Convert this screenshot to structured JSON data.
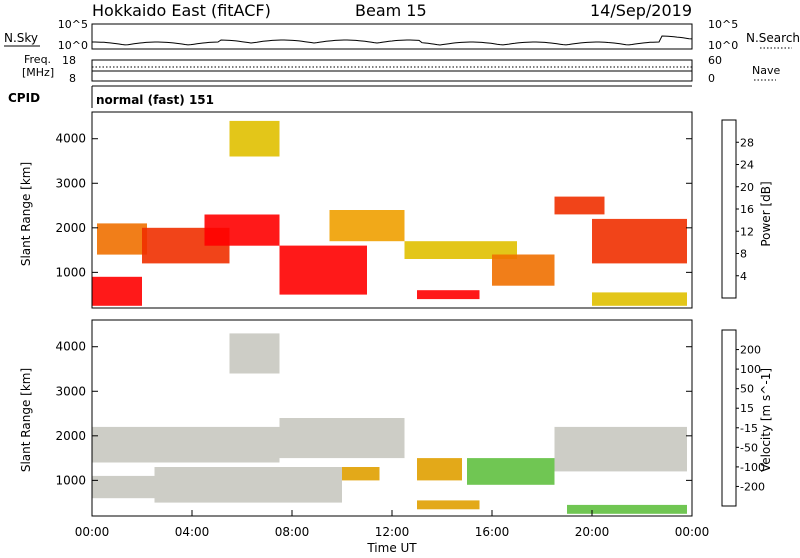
{
  "header": {
    "title": "Hokkaido East (fitACF)",
    "beam": "Beam 15",
    "date": "14/Sep/2019"
  },
  "top_labels": {
    "nsky": "N.Sky",
    "nsearch": "N.Search",
    "freq_line1": "Freq.",
    "freq_line2": "[MHz]",
    "nave": "Nave",
    "cpid": "CPID",
    "cpid_value": "normal (fast) 151"
  },
  "top_ticks": {
    "noise_left": [
      "10^5",
      "10^0"
    ],
    "noise_right": [
      "10^5",
      "10^0"
    ],
    "freq_left": [
      "18",
      "8"
    ],
    "freq_right": [
      "60",
      "0"
    ]
  },
  "colorbars": {
    "power": {
      "label": "Power [dB]",
      "ticks": [
        "28",
        "24",
        "20",
        "16",
        "12",
        "8",
        "4"
      ],
      "colors": [
        "#0000ff",
        "#2050a0",
        "#3a8a50",
        "#56c040",
        "#e0c000",
        "#f0a000",
        "#f07000",
        "#f03000",
        "#ff0000"
      ]
    },
    "velocity": {
      "label": "Velocity [m s^-1]",
      "ticks": [
        "200",
        "100",
        "50",
        "15",
        "-15",
        "-50",
        "-100",
        "-200"
      ],
      "colors": [
        "#ff0000",
        "#f05000",
        "#f08000",
        "#e0a000",
        "#c8c8c0",
        "#60c040",
        "#3a9050",
        "#2a5aa0",
        "#1010ff"
      ]
    }
  },
  "x_axis": {
    "label": "Time UT",
    "ticks": [
      "00:00",
      "04:00",
      "08:00",
      "12:00",
      "16:00",
      "20:00",
      "00:00"
    ]
  },
  "chart_data": [
    {
      "type": "heatmap",
      "name": "power",
      "ylabel": "Slant Range [km]",
      "xlim": [
        0,
        24
      ],
      "ylim": [
        200,
        4600
      ],
      "yticks": [
        1000,
        2000,
        3000,
        4000
      ],
      "clim": [
        0,
        30
      ],
      "regions": [
        {
          "t0": 0.0,
          "t1": 2.0,
          "r0": 250,
          "r1": 900,
          "value": 29
        },
        {
          "t0": 0.2,
          "t1": 2.2,
          "r0": 1400,
          "r1": 2100,
          "value": 22
        },
        {
          "t0": 2.0,
          "t1": 5.5,
          "r0": 1200,
          "r1": 2000,
          "value": 24
        },
        {
          "t0": 4.5,
          "t1": 7.5,
          "r0": 1600,
          "r1": 2300,
          "value": 27
        },
        {
          "t0": 5.5,
          "t1": 7.5,
          "r0": 3600,
          "r1": 4400,
          "value": 16
        },
        {
          "t0": 7.5,
          "t1": 11.0,
          "r0": 500,
          "r1": 1600,
          "value": 29
        },
        {
          "t0": 9.5,
          "t1": 12.5,
          "r0": 1700,
          "r1": 2400,
          "value": 18
        },
        {
          "t0": 12.5,
          "t1": 17.0,
          "r0": 1300,
          "r1": 1700,
          "value": 14
        },
        {
          "t0": 13.0,
          "t1": 15.5,
          "r0": 400,
          "r1": 600,
          "value": 27
        },
        {
          "t0": 16.0,
          "t1": 18.5,
          "r0": 700,
          "r1": 1400,
          "value": 22
        },
        {
          "t0": 18.5,
          "t1": 20.5,
          "r0": 2300,
          "r1": 2700,
          "value": 26
        },
        {
          "t0": 20.0,
          "t1": 23.8,
          "r0": 1200,
          "r1": 2200,
          "value": 25
        },
        {
          "t0": 20.0,
          "t1": 23.8,
          "r0": 250,
          "r1": 550,
          "value": 14
        }
      ]
    },
    {
      "type": "heatmap",
      "name": "velocity",
      "ylabel": "Slant Range [km]",
      "xlim": [
        0,
        24
      ],
      "ylim": [
        200,
        4600
      ],
      "yticks": [
        1000,
        2000,
        3000,
        4000
      ],
      "clim": [
        -250,
        250
      ],
      "regions": [
        {
          "t0": 0.0,
          "t1": 2.5,
          "r0": 600,
          "r1": 1100,
          "value": 0
        },
        {
          "t0": 0.0,
          "t1": 7.5,
          "r0": 1400,
          "r1": 2200,
          "value": 0
        },
        {
          "t0": 5.5,
          "t1": 7.5,
          "r0": 3400,
          "r1": 4300,
          "value": 0
        },
        {
          "t0": 2.5,
          "t1": 10.0,
          "r0": 500,
          "r1": 1300,
          "value": 0
        },
        {
          "t0": 7.5,
          "t1": 12.5,
          "r0": 1500,
          "r1": 2400,
          "value": 0
        },
        {
          "t0": 10.0,
          "t1": 11.5,
          "r0": 1000,
          "r1": 1300,
          "value": -70
        },
        {
          "t0": 13.0,
          "t1": 14.8,
          "r0": 1000,
          "r1": 1500,
          "value": -80
        },
        {
          "t0": 13.0,
          "t1": 15.5,
          "r0": 350,
          "r1": 550,
          "value": -40
        },
        {
          "t0": 15.0,
          "t1": 18.5,
          "r0": 900,
          "r1": 1500,
          "value": 70
        },
        {
          "t0": 18.5,
          "t1": 23.8,
          "r0": 1200,
          "r1": 2200,
          "value": 0
        },
        {
          "t0": 19.0,
          "t1": 23.8,
          "r0": 250,
          "r1": 450,
          "value": 30
        }
      ]
    }
  ]
}
